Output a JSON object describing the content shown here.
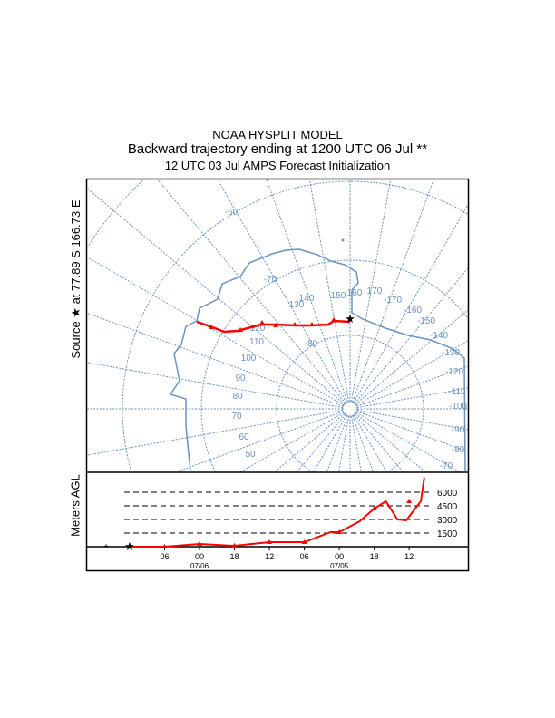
{
  "chart_data": [
    {
      "type": "line",
      "title": "NOAA HYSPLIT MODEL",
      "subtitle": "Backward trajectory ending at 1200 UTC 06 Jul **",
      "subtitle2": "12 UTC 03 Jul    AMPS  Forecast Initialization",
      "ylabel": "Source ★ at  77.89 S  166.73 E",
      "map_labels": [
        "-60",
        "-70",
        "130",
        "140",
        "150",
        "160",
        "170",
        "-170",
        "-160",
        "-150",
        "-140",
        "-130",
        "-120",
        "-110",
        "-100",
        "-90",
        "-80",
        "-70",
        "120",
        "110",
        "100",
        "90",
        "80",
        "70",
        "60",
        "50",
        "-80"
      ],
      "trajectory_color": "#ff0000",
      "map_color": "#6a93c0"
    },
    {
      "type": "line",
      "ylabel": "Meters AGL",
      "y_ticks": [
        "6000",
        "4500",
        "3000",
        "1500"
      ],
      "y_tick_values": [
        6000,
        4500,
        3000,
        1500
      ],
      "x_tick_labels": [
        "06",
        "00",
        "18",
        "12",
        "06",
        "00",
        "18",
        "12"
      ],
      "x_tick_hours_back": [
        6,
        12,
        18,
        24,
        30,
        36,
        42,
        48
      ],
      "date_labels": [
        {
          "text": "07/06",
          "hours_back": 12
        },
        {
          "text": "07/05",
          "hours_back": 36
        }
      ],
      "series": [
        {
          "hours_back": [
            0,
            6,
            12,
            18,
            24,
            30,
            34.5,
            36,
            39.5,
            42,
            44,
            46,
            47.5,
            50,
            50.6
          ],
          "height_m": [
            0,
            0,
            300,
            100,
            500,
            500,
            1600,
            1600,
            2800,
            4200,
            5000,
            3000,
            2900,
            5000,
            7600
          ]
        }
      ]
    }
  ]
}
